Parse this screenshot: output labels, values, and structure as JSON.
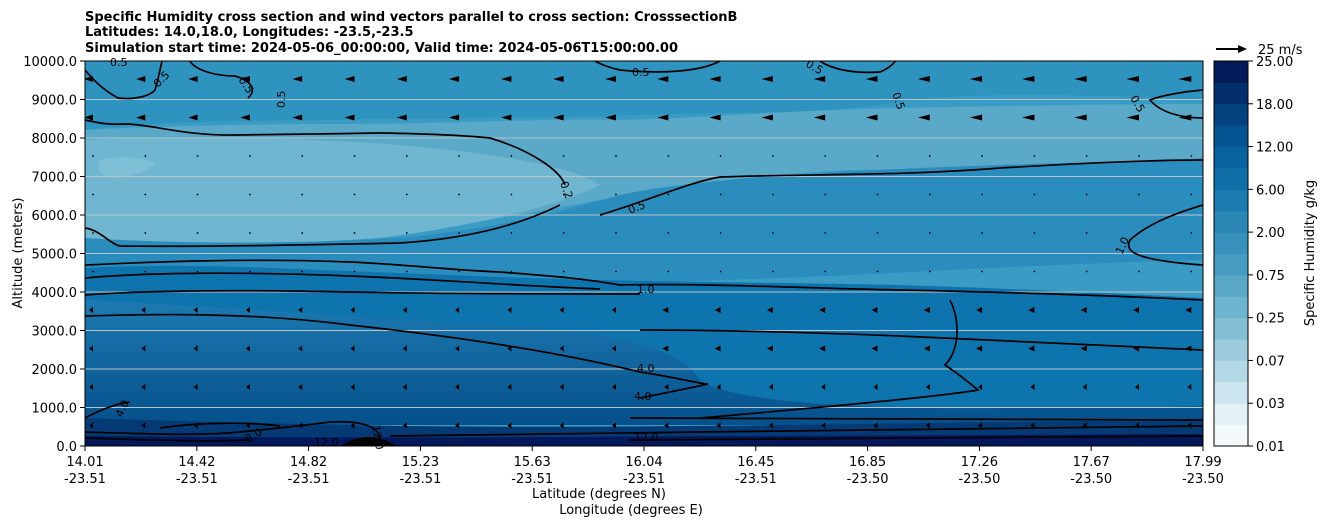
{
  "chart_data": {
    "type": "contourf",
    "title_lines": [
      "Specific Humidity cross section and wind vectors parallel to cross section: CrosssectionB",
      "Latitudes: 14.0,18.0, Longitudes: -23.5,-23.5",
      "Simulation start time: 2024-05-06_00:00:00, Valid time: 2024-05-06T15:00:00.00"
    ],
    "ylabel": "Altitude (meters)",
    "xlabel_lat": "Latitude (degrees N)",
    "xlabel_lon": "Longitude (degrees E)",
    "ylim": [
      0,
      10000
    ],
    "y_ticks": [
      0,
      1000,
      2000,
      3000,
      4000,
      5000,
      6000,
      7000,
      8000,
      9000,
      10000
    ],
    "y_tick_labels": [
      "0.0",
      "1000.0",
      "2000.0",
      "3000.0",
      "4000.0",
      "5000.0",
      "6000.0",
      "7000.0",
      "8000.0",
      "9000.0",
      "10000.0"
    ],
    "x_tick_lat": [
      "14.01",
      "14.42",
      "14.82",
      "15.23",
      "15.63",
      "16.04",
      "16.45",
      "16.85",
      "17.26",
      "17.67",
      "17.99"
    ],
    "x_tick_lon": [
      "-23.51",
      "-23.51",
      "-23.51",
      "-23.51",
      "-23.51",
      "-23.51",
      "-23.51",
      "-23.50",
      "-23.50",
      "-23.50",
      "-23.50"
    ],
    "colorbar": {
      "label": "Specific Humidity g/kg",
      "levels": [
        "0.01",
        "0.03",
        "0.07",
        "0.25",
        "0.75",
        "2.00",
        "6.00",
        "12.00",
        "18.00",
        "25.00"
      ],
      "level_values": [
        0.01,
        0.03,
        0.07,
        0.25,
        0.75,
        2.0,
        6.0,
        12.0,
        18.0,
        25.0
      ]
    },
    "quiver_key": "25 m/s",
    "contour_labels": [
      "0.5",
      "0.5",
      "0.5",
      "0.5",
      "0.5",
      "0.5",
      "0.5",
      "0.5",
      "0.2",
      "0.5",
      "1.0",
      "1.0",
      "4.0",
      "4.0",
      "4.0",
      "8.0",
      "12.0",
      "12.0",
      "12.0"
    ],
    "colors": {
      "dry": "#6fb6cf",
      "mid": "#3a9cc4",
      "moist": "#0a6aa0",
      "wet": "#05508a",
      "vwet": "#06306a",
      "ex": "#021550"
    }
  }
}
